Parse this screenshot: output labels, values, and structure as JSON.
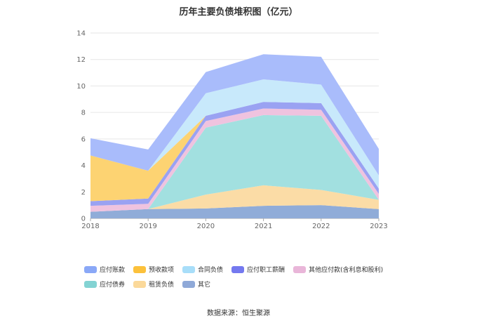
{
  "chart_data": {
    "type": "area",
    "stacked": true,
    "title": "历年主要负债堆积图（亿元）",
    "xlabel": "",
    "ylabel": "",
    "categories": [
      "2018",
      "2019",
      "2020",
      "2021",
      "2022",
      "2023"
    ],
    "ylim": [
      0,
      14
    ],
    "yticks": [
      0,
      2,
      4,
      6,
      8,
      10,
      12,
      14
    ],
    "grid": true,
    "legend_position": "bottom",
    "series": [
      {
        "name": "其它",
        "color": "#90acd8",
        "values": [
          0.5,
          0.7,
          0.75,
          0.95,
          1.0,
          0.7
        ]
      },
      {
        "name": "租赁负债",
        "color": "#fbdca6",
        "values": [
          0.0,
          0.0,
          1.05,
          1.55,
          1.15,
          0.7
        ]
      },
      {
        "name": "应付债券",
        "color": "#a2e0e0",
        "values": [
          0.0,
          0.0,
          5.05,
          5.3,
          5.6,
          0.0
        ]
      },
      {
        "name": "其他应付款(含利息和股利)",
        "color": "#efc3df",
        "values": [
          0.45,
          0.4,
          0.5,
          0.5,
          0.45,
          0.45
        ]
      },
      {
        "name": "应付职工薪酬",
        "color": "#9aa2f2",
        "values": [
          0.35,
          0.4,
          0.4,
          0.5,
          0.5,
          0.4
        ]
      },
      {
        "name": "预收款项",
        "color": "#fdd372",
        "values": [
          3.45,
          2.1,
          0.0,
          0.0,
          0.0,
          0.0
        ]
      },
      {
        "name": "合同负债",
        "color": "#c8e9fb",
        "values": [
          0.0,
          0.0,
          1.7,
          1.7,
          1.4,
          1.0
        ]
      },
      {
        "name": "应付账款",
        "color": "#a9bcfb",
        "values": [
          1.3,
          1.6,
          1.6,
          1.9,
          2.1,
          2.0
        ]
      }
    ]
  },
  "legend": [
    {
      "label": "应付账款",
      "color": "#8aa8f7"
    },
    {
      "label": "预收款项",
      "color": "#fcc13b"
    },
    {
      "label": "合同负债",
      "color": "#a8def9"
    },
    {
      "label": "应付职工薪酬",
      "color": "#7479ef"
    },
    {
      "label": "其他应付款(含利息和股利)",
      "color": "#e9b6d9"
    },
    {
      "label": "应付债券",
      "color": "#83d3d3"
    },
    {
      "label": "租赁负债",
      "color": "#fbd99a"
    },
    {
      "label": "其它",
      "color": "#8fa9d8"
    }
  ],
  "source": "数据来源：恒生聚源"
}
